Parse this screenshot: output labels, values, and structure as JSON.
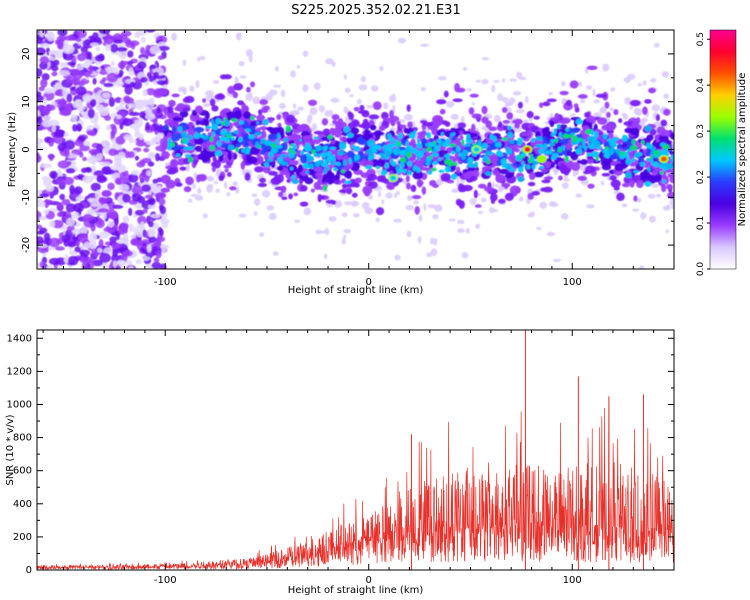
{
  "title": "S225.2025.352.02.21.E31",
  "colors": {
    "snr_line": "#e8302a",
    "axes": "#000000"
  },
  "chart_data": [
    {
      "type": "heatmap",
      "xlabel": "Height of straight line (km)",
      "ylabel": "Frequency (Hz)",
      "xlim": [
        -163,
        150
      ],
      "ylim": [
        -25,
        25
      ],
      "xticks": [
        -100,
        0,
        100
      ],
      "yticks": [
        -20,
        -10,
        0,
        10,
        20
      ],
      "colorbar": {
        "label": "Normalized spectral amplitude",
        "range": [
          0.0,
          0.52
        ],
        "ticks": [
          0.0,
          0.1,
          0.2,
          0.3,
          0.4,
          0.5
        ],
        "colormap": [
          "#ffffff",
          "#d8c8ff",
          "#9a3cff",
          "#4a00e0",
          "#2a3cff",
          "#00c8ff",
          "#00e070",
          "#9cff00",
          "#ffd000",
          "#ff5000",
          "#ff0030",
          "#ff0090"
        ]
      },
      "band_center_hz": [
        {
          "x": -100,
          "y": 2
        },
        {
          "x": -80,
          "y": 3
        },
        {
          "x": -60,
          "y": 3
        },
        {
          "x": -40,
          "y": -1
        },
        {
          "x": -20,
          "y": -2
        },
        {
          "x": 0,
          "y": 0
        },
        {
          "x": 20,
          "y": -1
        },
        {
          "x": 40,
          "y": 0
        },
        {
          "x": 60,
          "y": -1
        },
        {
          "x": 80,
          "y": -1
        },
        {
          "x": 100,
          "y": 2
        },
        {
          "x": 120,
          "y": 0
        },
        {
          "x": 145,
          "y": -2
        }
      ],
      "peak_amplitude_points": [
        {
          "x": 78,
          "y": 0,
          "amp": 0.45
        },
        {
          "x": 85,
          "y": -2,
          "amp": 0.35
        },
        {
          "x": 145,
          "y": -2,
          "amp": 0.42
        },
        {
          "x": 53,
          "y": 0,
          "amp": 0.25
        },
        {
          "x": 12,
          "y": -6,
          "amp": 0.22
        }
      ]
    },
    {
      "type": "line",
      "xlabel": "Height of straight line (km)",
      "ylabel": "SNR (10 * v/v)",
      "xlim": [
        -163,
        150
      ],
      "ylim": [
        0,
        1450
      ],
      "xticks": [
        -100,
        0,
        100
      ],
      "yticks": [
        0,
        200,
        400,
        600,
        800,
        1000,
        1200,
        1400
      ],
      "series": [
        {
          "x": [
            -163,
            -140,
            -120,
            -100,
            -80,
            -60,
            -50,
            -40,
            -30,
            -20,
            -10,
            0,
            10,
            20,
            30,
            40,
            50,
            60,
            70,
            80,
            90,
            100,
            110,
            120,
            130,
            140,
            150
          ],
          "baseline": [
            15,
            15,
            15,
            20,
            25,
            35,
            45,
            60,
            80,
            110,
            140,
            170,
            190,
            210,
            220,
            230,
            240,
            240,
            240,
            250,
            240,
            230,
            230,
            220,
            210,
            200,
            190
          ],
          "upper_envelope": [
            40,
            40,
            45,
            50,
            80,
            100,
            140,
            200,
            260,
            350,
            420,
            480,
            600,
            750,
            850,
            950,
            1000,
            800,
            950,
            1000,
            900,
            950,
            1000,
            1050,
            950,
            900,
            700
          ]
        }
      ],
      "peaks": [
        {
          "x": 77,
          "y": 1450
        },
        {
          "x": 103,
          "y": 1170
        },
        {
          "x": 21,
          "y": 820
        },
        {
          "x": 118,
          "y": 1050
        },
        {
          "x": 135,
          "y": 1060
        }
      ]
    }
  ]
}
